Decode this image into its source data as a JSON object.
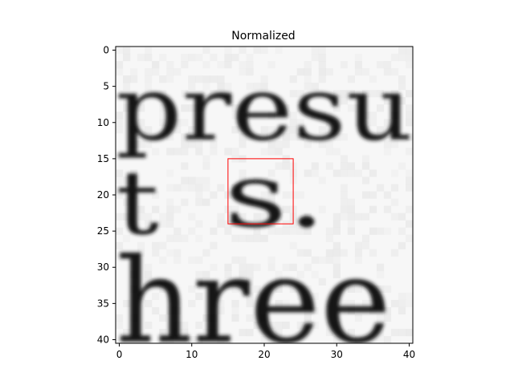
{
  "chart_data": {
    "type": "heatmap",
    "title": "Normalized",
    "xlabel": "",
    "ylabel": "",
    "x_ticks": [
      0,
      10,
      20,
      30,
      40
    ],
    "y_ticks": [
      0,
      5,
      10,
      15,
      20,
      25,
      30,
      35,
      40
    ],
    "xlim": [
      -0.5,
      40.5
    ],
    "ylim": [
      40.5,
      -0.5
    ],
    "colormap": "gray",
    "grid": false,
    "image_size": [
      41,
      41
    ],
    "rendered_text": [
      {
        "text": "presu",
        "row_range": [
          4,
          12
        ],
        "col_range": [
          0,
          40
        ]
      },
      {
        "text": "t",
        "row_range": [
          17,
          25
        ],
        "col_range": [
          0,
          5
        ]
      },
      {
        "text": "s.",
        "row_range": [
          16,
          24
        ],
        "col_range": [
          15,
          28
        ]
      },
      {
        "text": "hree",
        "row_range": [
          29,
          40
        ],
        "col_range": [
          0,
          37
        ]
      }
    ],
    "highlight_box": {
      "x_range": [
        15,
        24
      ],
      "y_range": [
        15,
        24
      ],
      "color": "#ff0000"
    },
    "colors": {
      "box": "#ff0000",
      "frame": "#000000",
      "background": "#ffffff"
    }
  }
}
